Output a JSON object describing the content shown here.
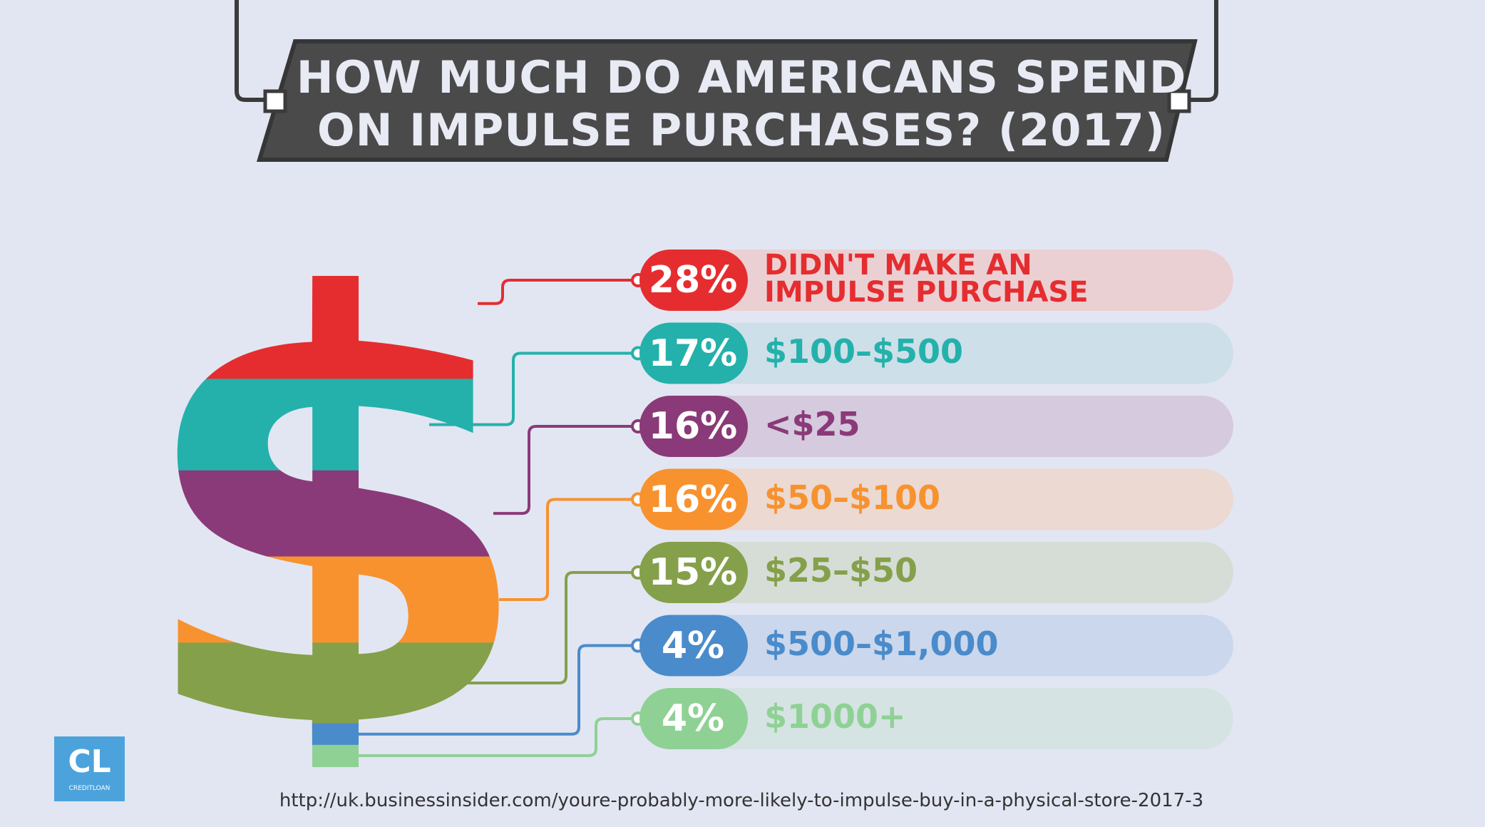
{
  "title": {
    "line1": "HOW MUCH DO AMERICANS SPEND",
    "line2": "ON IMPULSE PURCHASES? (2017)"
  },
  "chart_data": {
    "type": "bar",
    "title": "HOW MUCH DO AMERICANS SPEND ON IMPULSE PURCHASES? (2017)",
    "unit": "%",
    "categories": [
      "DIDN'T MAKE AN IMPULSE PURCHASE",
      "$100-$500",
      "<$25",
      "$50-$100",
      "$25-$50",
      "$500-$1,000",
      "$1000+"
    ],
    "values": [
      28,
      17,
      16,
      16,
      15,
      4,
      4
    ],
    "labels": [
      "28%",
      "17%",
      "16%",
      "16%",
      "15%",
      "4%",
      "4%"
    ],
    "label_lines": [
      [
        "DIDN'T MAKE AN",
        "IMPULSE PURCHASE"
      ],
      [
        "$100–$500"
      ],
      [
        "<$25"
      ],
      [
        "$50–$100"
      ],
      [
        "$25–$50"
      ],
      [
        "$500–$1,000"
      ],
      [
        "$1000+"
      ]
    ],
    "colors": [
      "#e52d30",
      "#24b1ab",
      "#8a3a78",
      "#f7922f",
      "#85a04a",
      "#4a8bcb",
      "#8fd195"
    ],
    "pill_colors": [
      "#ebd0d3",
      "#cddfe8",
      "#d6cade",
      "#ebd9d2",
      "#d6ddd7",
      "#cbd7ec",
      "#d5e3e3"
    ]
  },
  "logo": {
    "mark": "CL",
    "text": "CREDITLOAN"
  },
  "source": "http://uk.businessinsider.com/youre-probably-more-likely-to-impulse-buy-in-a-physical-store-2017-3"
}
